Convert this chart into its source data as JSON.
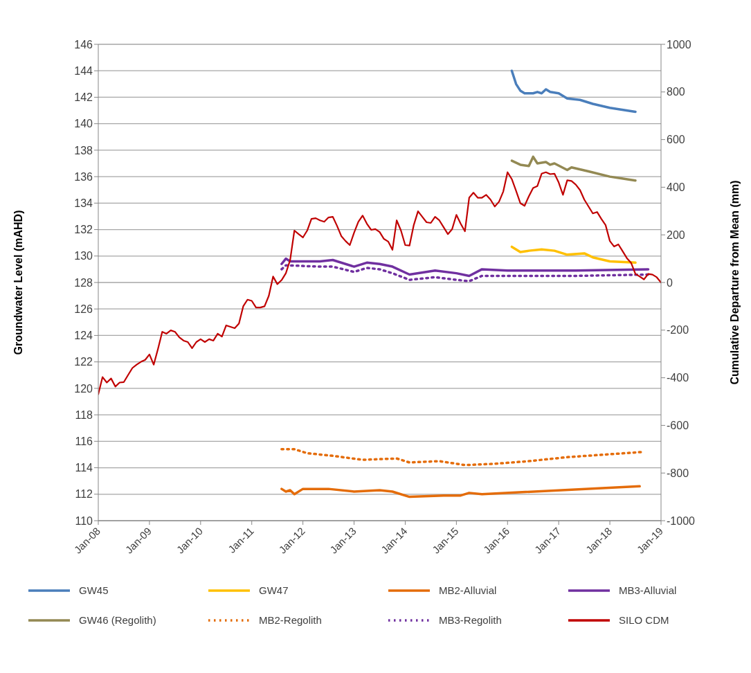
{
  "chart_data": {
    "type": "line",
    "ylabel": "Groundwater Level (mAHD)",
    "y2label": "Cumulative Departure from Mean (mm)",
    "xlim": [
      "2008-01",
      "2019-01"
    ],
    "xticks": [
      {
        "value": "2008-01",
        "label": "Jan-08"
      },
      {
        "value": "2009-01",
        "label": "Jan-09"
      },
      {
        "value": "2010-01",
        "label": "Jan-10"
      },
      {
        "value": "2011-01",
        "label": "Jan-11"
      },
      {
        "value": "2012-01",
        "label": "Jan-12"
      },
      {
        "value": "2013-01",
        "label": "Jan-13"
      },
      {
        "value": "2014-01",
        "label": "Jan-14"
      },
      {
        "value": "2015-01",
        "label": "Jan-15"
      },
      {
        "value": "2016-01",
        "label": "Jan-16"
      },
      {
        "value": "2017-01",
        "label": "Jan-17"
      },
      {
        "value": "2018-01",
        "label": "Jan-18"
      },
      {
        "value": "2019-01",
        "label": "Jan-19"
      }
    ],
    "ylim": [
      110,
      146
    ],
    "yticks": [
      110,
      112,
      114,
      116,
      118,
      120,
      122,
      124,
      126,
      128,
      130,
      132,
      134,
      136,
      138,
      140,
      142,
      144,
      146
    ],
    "y2lim": [
      -1000,
      1000
    ],
    "y2ticks": [
      -1000,
      -800,
      -600,
      -400,
      -200,
      0,
      200,
      400,
      600,
      800,
      1000
    ],
    "grid": "y",
    "legend": "bottom",
    "marker": "none",
    "series": [
      {
        "name": "GW45",
        "color": "#4a7ebb",
        "line_style": "solid",
        "x": [
          "2016-02",
          "2016-03",
          "2016-04",
          "2016-05",
          "2016-07",
          "2016-08",
          "2016-09",
          "2016-10",
          "2016-11",
          "2017-01",
          "2017-03",
          "2017-06",
          "2017-09",
          "2018-01",
          "2018-07"
        ],
        "values": [
          144.0,
          143.0,
          142.5,
          142.3,
          142.3,
          142.4,
          142.3,
          142.6,
          142.4,
          142.3,
          141.9,
          141.8,
          141.5,
          141.2,
          140.9
        ]
      },
      {
        "name": "GW47",
        "color": "#ffc000",
        "line_style": "solid",
        "x": [
          "2016-02",
          "2016-04",
          "2016-06",
          "2016-09",
          "2016-12",
          "2017-03",
          "2017-07",
          "2017-09",
          "2018-01",
          "2018-07"
        ],
        "values": [
          130.7,
          130.3,
          130.4,
          130.5,
          130.4,
          130.1,
          130.2,
          129.9,
          129.6,
          129.5
        ]
      },
      {
        "name": "MB2-Alluvial",
        "color": "#e46c0a",
        "line_style": "solid",
        "x": [
          "2011-08",
          "2011-09",
          "2011-10",
          "2011-11",
          "2012-01",
          "2012-07",
          "2013-01",
          "2013-07",
          "2013-10",
          "2014-02",
          "2014-10",
          "2015-02",
          "2015-04",
          "2015-07",
          "2018-08"
        ],
        "values": [
          112.4,
          112.2,
          112.3,
          112.0,
          112.4,
          112.4,
          112.2,
          112.3,
          112.2,
          111.8,
          111.9,
          111.9,
          112.1,
          112.0,
          112.6
        ]
      },
      {
        "name": "MB3-Alluvial",
        "color": "#7030a0",
        "line_style": "solid",
        "x": [
          "2011-08",
          "2011-09",
          "2011-10",
          "2012-05",
          "2012-08",
          "2013-01",
          "2013-04",
          "2013-07",
          "2013-10",
          "2014-02",
          "2014-08",
          "2015-01",
          "2015-04",
          "2015-07",
          "2016-01",
          "2017-05",
          "2018-10"
        ],
        "values": [
          129.4,
          129.8,
          129.6,
          129.6,
          129.7,
          129.2,
          129.5,
          129.4,
          129.2,
          128.6,
          128.9,
          128.7,
          128.5,
          129.0,
          128.9,
          128.9,
          129.0
        ]
      },
      {
        "name": "GW46 (Regolith)",
        "color": "#938953",
        "line_style": "solid",
        "x": [
          "2016-02",
          "2016-04",
          "2016-06",
          "2016-07",
          "2016-08",
          "2016-10",
          "2016-11",
          "2016-12",
          "2017-03",
          "2017-04",
          "2017-08",
          "2018-01",
          "2018-07"
        ],
        "values": [
          137.2,
          136.9,
          136.8,
          137.5,
          137.0,
          137.1,
          136.9,
          137.0,
          136.5,
          136.7,
          136.4,
          136.0,
          135.7
        ]
      },
      {
        "name": "MB2-Regolith",
        "color": "#e46c0a",
        "line_style": "dotted",
        "x": [
          "2011-08",
          "2011-11",
          "2012-02",
          "2012-08",
          "2013-03",
          "2013-11",
          "2014-02",
          "2014-09",
          "2015-03",
          "2015-10",
          "2016-06",
          "2017-03",
          "2018-09"
        ],
        "values": [
          115.4,
          115.4,
          115.1,
          114.9,
          114.6,
          114.7,
          114.4,
          114.5,
          114.2,
          114.3,
          114.5,
          114.8,
          115.2
        ]
      },
      {
        "name": "MB3-Regolith",
        "color": "#7030a0",
        "line_style": "dotted",
        "x": [
          "2011-08",
          "2011-09",
          "2012-05",
          "2012-08",
          "2013-01",
          "2013-04",
          "2013-07",
          "2013-10",
          "2014-02",
          "2014-08",
          "2015-01",
          "2015-04",
          "2015-07",
          "2016-01",
          "2017-05",
          "2018-10"
        ],
        "values": [
          129.0,
          129.3,
          129.2,
          129.2,
          128.8,
          129.1,
          129.0,
          128.7,
          128.2,
          128.4,
          128.2,
          128.1,
          128.5,
          128.5,
          128.5,
          128.6
        ]
      },
      {
        "name": "SILO CDM",
        "color": "#c00000",
        "line_style": "solid",
        "axis": "y2",
        "x": [
          "2008-01",
          "2008-02",
          "2008-03",
          "2008-04",
          "2008-05",
          "2008-06",
          "2008-07",
          "2008-08",
          "2008-09",
          "2008-10",
          "2008-11",
          "2008-12",
          "2009-01",
          "2009-02",
          "2009-03",
          "2009-04",
          "2009-05",
          "2009-06",
          "2009-07",
          "2009-08",
          "2009-09",
          "2009-10",
          "2009-11",
          "2009-12",
          "2010-01",
          "2010-02",
          "2010-03",
          "2010-04",
          "2010-05",
          "2010-06",
          "2010-07",
          "2010-08",
          "2010-09",
          "2010-10",
          "2010-11",
          "2010-12",
          "2011-01",
          "2011-02",
          "2011-03",
          "2011-04",
          "2011-05",
          "2011-06",
          "2011-07",
          "2011-08",
          "2011-09",
          "2011-10",
          "2011-11",
          "2011-12",
          "2012-01",
          "2012-02",
          "2012-03",
          "2012-04",
          "2012-05",
          "2012-06",
          "2012-07",
          "2012-08",
          "2012-09",
          "2012-10",
          "2012-11",
          "2012-12",
          "2013-01",
          "2013-02",
          "2013-03",
          "2013-04",
          "2013-05",
          "2013-06",
          "2013-07",
          "2013-08",
          "2013-09",
          "2013-10",
          "2013-11",
          "2013-12",
          "2014-01",
          "2014-02",
          "2014-03",
          "2014-04",
          "2014-05",
          "2014-06",
          "2014-07",
          "2014-08",
          "2014-09",
          "2014-10",
          "2014-11",
          "2014-12",
          "2015-01",
          "2015-02",
          "2015-03",
          "2015-04",
          "2015-05",
          "2015-06",
          "2015-07",
          "2015-08",
          "2015-09",
          "2015-10",
          "2015-11",
          "2015-12",
          "2016-01",
          "2016-02",
          "2016-03",
          "2016-04",
          "2016-05",
          "2016-06",
          "2016-07",
          "2016-08",
          "2016-09",
          "2016-10",
          "2016-11",
          "2016-12",
          "2017-01",
          "2017-02",
          "2017-03",
          "2017-04",
          "2017-05",
          "2017-06",
          "2017-07",
          "2017-08",
          "2017-09",
          "2017-10",
          "2017-11",
          "2017-12",
          "2018-01",
          "2018-02",
          "2018-03",
          "2018-04",
          "2018-05",
          "2018-06",
          "2018-07",
          "2018-08",
          "2018-09",
          "2018-10",
          "2018-11",
          "2018-12",
          "2019-01"
        ],
        "values": [
          -469,
          -397,
          -420,
          -403,
          -437,
          -420,
          -418,
          -388,
          -359,
          -345,
          -333,
          -325,
          -302,
          -345,
          -279,
          -207,
          -215,
          -201,
          -207,
          -230,
          -244,
          -250,
          -276,
          -250,
          -238,
          -250,
          -238,
          -244,
          -215,
          -227,
          -180,
          -186,
          -192,
          -172,
          -100,
          -72,
          -77,
          -105,
          -105,
          -100,
          -56,
          25,
          -7,
          10,
          39,
          94,
          218,
          203,
          189,
          218,
          267,
          270,
          261,
          255,
          273,
          276,
          238,
          195,
          174,
          157,
          209,
          255,
          281,
          247,
          221,
          224,
          212,
          183,
          172,
          137,
          261,
          218,
          157,
          155,
          241,
          299,
          276,
          253,
          250,
          276,
          261,
          232,
          203,
          224,
          284,
          247,
          215,
          356,
          377,
          356,
          356,
          368,
          348,
          319,
          339,
          382,
          463,
          434,
          385,
          333,
          322,
          362,
          397,
          405,
          457,
          463,
          455,
          457,
          420,
          368,
          429,
          426,
          411,
          388,
          348,
          319,
          290,
          296,
          267,
          241,
          174,
          151,
          160,
          131,
          102,
          82,
          36,
          25,
          13,
          36,
          33,
          22,
          0
        ]
      }
    ]
  }
}
